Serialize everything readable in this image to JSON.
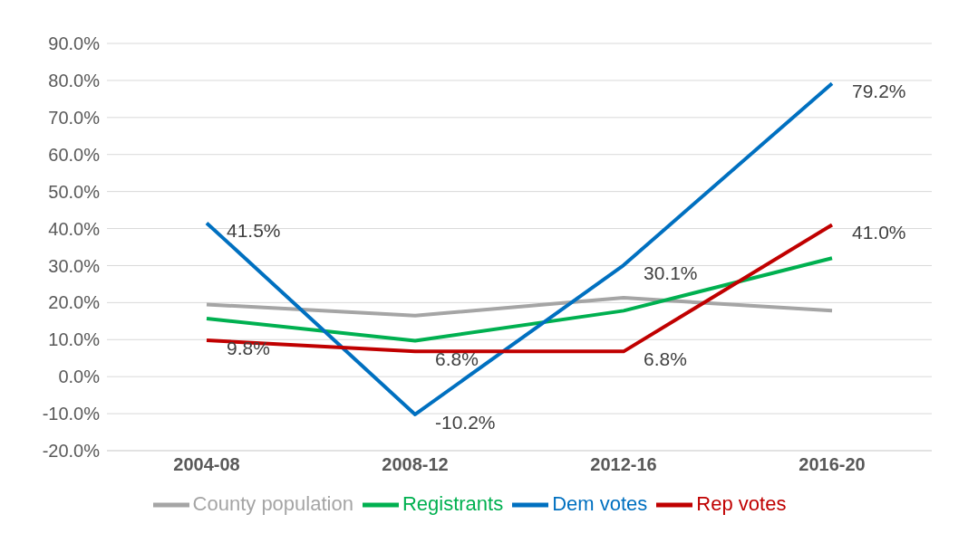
{
  "chart_data": {
    "type": "line",
    "categories": [
      "2004-08",
      "2008-12",
      "2012-16",
      "2016-20"
    ],
    "series": [
      {
        "name": "County population",
        "color": "#a5a5a5",
        "values": [
          19.5,
          16.5,
          21.3,
          17.8
        ]
      },
      {
        "name": "Registrants",
        "color": "#00b050",
        "values": [
          15.7,
          9.7,
          17.8,
          32.0
        ]
      },
      {
        "name": "Dem votes",
        "color": "#0070c0",
        "values": [
          41.5,
          -10.2,
          30.1,
          79.2
        ],
        "value_labels": [
          "41.5%",
          "-10.2%",
          "30.1%",
          "79.2%"
        ]
      },
      {
        "name": "Rep votes",
        "color": "#c00000",
        "values": [
          9.8,
          6.8,
          6.8,
          41.0
        ],
        "value_labels": [
          "9.8%",
          "6.8%",
          "6.8%",
          "41.0%"
        ]
      }
    ],
    "ylim": [
      -20,
      90
    ],
    "yticks": [
      {
        "value": -20,
        "label": "-20.0%"
      },
      {
        "value": -10,
        "label": "-10.0%"
      },
      {
        "value": 0,
        "label": "0.0%"
      },
      {
        "value": 10,
        "label": "10.0%"
      },
      {
        "value": 20,
        "label": "20.0%"
      },
      {
        "value": 30,
        "label": "30.0%"
      },
      {
        "value": 40,
        "label": "40.0%"
      },
      {
        "value": 50,
        "label": "50.0%"
      },
      {
        "value": 60,
        "label": "60.0%"
      },
      {
        "value": 70,
        "label": "70.0%"
      },
      {
        "value": 80,
        "label": "80.0%"
      },
      {
        "value": 90,
        "label": "90.0%"
      }
    ],
    "grid": "y",
    "legend": "bottom",
    "marker": "none",
    "line_style": "solid"
  }
}
